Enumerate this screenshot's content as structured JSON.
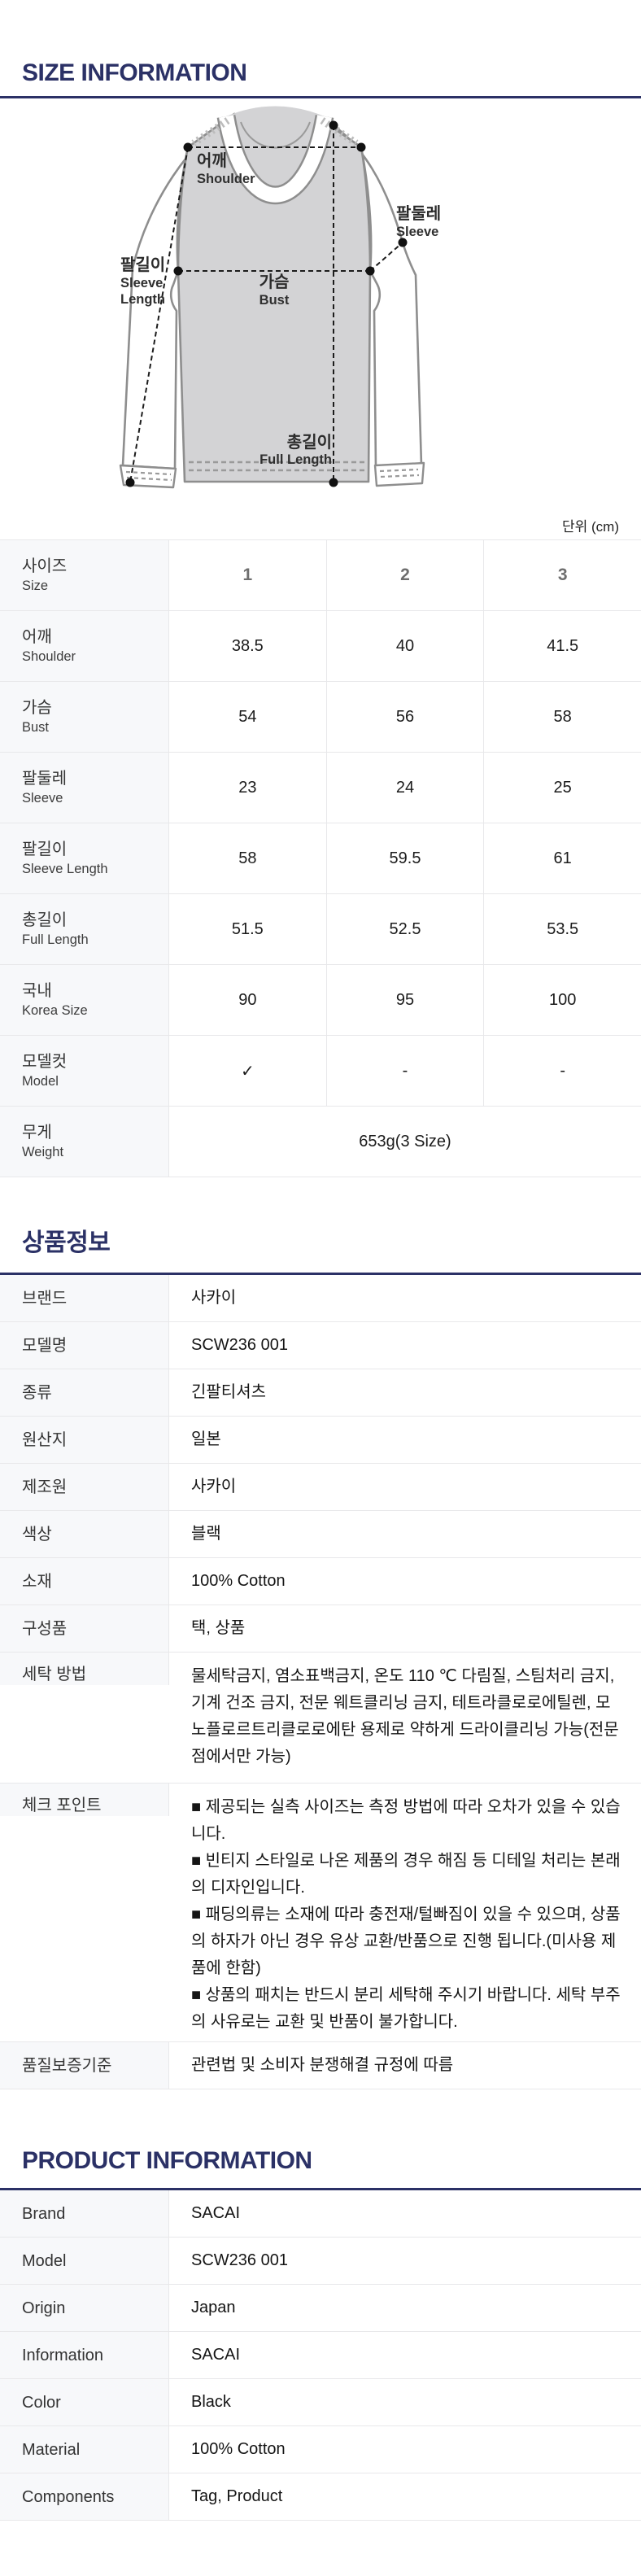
{
  "colors": {
    "accent": "#2b3166",
    "table_border": "#e8e8ea",
    "label_cell_bg": "#f7f8fa",
    "shirt_fill": "#d3d3d5",
    "shirt_outline": "#8e8e8e"
  },
  "size_information": {
    "title": "SIZE INFORMATION",
    "unit_label": "단위 (cm)",
    "diagram": {
      "labels": {
        "shoulder_ko": "어깨",
        "shoulder_en": "Shoulder",
        "sleeve_ko": "팔둘레",
        "sleeve_en": "Sleeve",
        "sleeve_length_ko": "팔길이",
        "sleeve_length_en_1": "Sleeve",
        "sleeve_length_en_2": "Length",
        "bust_ko": "가슴",
        "bust_en": "Bust",
        "full_length_ko": "총길이",
        "full_length_en": "Full Length"
      }
    },
    "table": {
      "rows": [
        {
          "type": "header",
          "label_ko": "사이즈",
          "label_en": "Size",
          "values": [
            "1",
            "2",
            "3"
          ]
        },
        {
          "type": "data",
          "label_ko": "어깨",
          "label_en": "Shoulder",
          "values": [
            "38.5",
            "40",
            "41.5"
          ]
        },
        {
          "type": "data",
          "label_ko": "가슴",
          "label_en": "Bust",
          "values": [
            "54",
            "56",
            "58"
          ]
        },
        {
          "type": "data",
          "label_ko": "팔둘레",
          "label_en": "Sleeve",
          "values": [
            "23",
            "24",
            "25"
          ]
        },
        {
          "type": "data",
          "label_ko": "팔길이",
          "label_en": "Sleeve Length",
          "values": [
            "58",
            "59.5",
            "61"
          ]
        },
        {
          "type": "data",
          "label_ko": "총길이",
          "label_en": "Full Length",
          "values": [
            "51.5",
            "52.5",
            "53.5"
          ]
        },
        {
          "type": "data",
          "label_ko": "국내",
          "label_en": "Korea Size",
          "values": [
            "90",
            "95",
            "100"
          ]
        },
        {
          "type": "data",
          "label_ko": "모델컷",
          "label_en": "Model",
          "values": [
            "✓",
            "-",
            "-"
          ]
        },
        {
          "type": "span",
          "label_ko": "무게",
          "label_en": "Weight",
          "values": [
            "653g(3 Size)"
          ]
        }
      ]
    }
  },
  "product_info_ko": {
    "title": "상품정보",
    "rows": [
      {
        "label": "브랜드",
        "value": "사카이"
      },
      {
        "label": "모델명",
        "value": "SCW236 001"
      },
      {
        "label": "종류",
        "value": "긴팔티셔츠"
      },
      {
        "label": "원산지",
        "value": "일본"
      },
      {
        "label": "제조원",
        "value": "사카이"
      },
      {
        "label": "색상",
        "value": "블랙"
      },
      {
        "label": "소재",
        "value": "100% Cotton"
      },
      {
        "label": "구성품",
        "value": "택, 상품"
      },
      {
        "label": "세탁 방법",
        "value": "물세탁금지, 염소표백금지, 온도 110 ℃ 다림질, 스팀처리 금지, 기계 건조 금지, 전문 웨트클리닝 금지, 테트라클로로에틸렌, 모노플로르트리클로로에탄 용제로 약하게 드라이클리닝 가능(전문점에서만 가능)"
      },
      {
        "label": "체크 포인트",
        "bullets": [
          "■ 제공되는 실측 사이즈는 측정 방법에 따라 오차가 있을 수 있습니다.",
          "■ 빈티지 스타일로 나온 제품의 경우 해짐 등 디테일 처리는 본래의 디자인입니다.",
          "■ 패딩의류는 소재에 따라 충전재/털빠짐이 있을 수 있으며, 상품의 하자가 아닌 경우 유상 교환/반품으로 진행 됩니다.(미사용 제품에 한함)",
          "■ 상품의 패치는 반드시 분리 세탁해 주시기 바랍니다. 세탁 부주의 사유로는 교환 및 반품이 불가합니다."
        ]
      },
      {
        "label": "품질보증기준",
        "value": "관련법 및 소비자 분쟁해결 규정에 따름"
      }
    ]
  },
  "product_info_en": {
    "title": "PRODUCT INFORMATION",
    "rows": [
      {
        "label": "Brand",
        "value": "SACAI"
      },
      {
        "label": "Model",
        "value": "SCW236 001"
      },
      {
        "label": "Origin",
        "value": "Japan"
      },
      {
        "label": "Information",
        "value": "SACAI"
      },
      {
        "label": "Color",
        "value": "Black"
      },
      {
        "label": "Material",
        "value": "100% Cotton"
      },
      {
        "label": "Components",
        "value": "Tag, Product"
      }
    ]
  }
}
